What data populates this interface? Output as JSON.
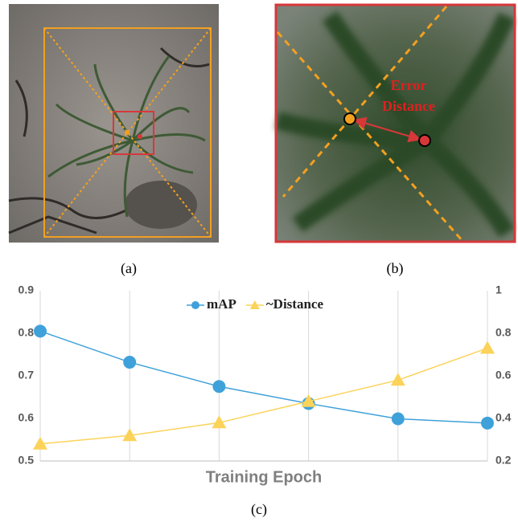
{
  "chart_data": {
    "type": "line",
    "categories": [
      null,
      null,
      null,
      null,
      null,
      null
    ],
    "x_label": "Training Epoch",
    "series": [
      {
        "name": "mAP",
        "color": "#3fa1da",
        "marker": "circle",
        "values": [
          0.805,
          0.732,
          0.675,
          0.635,
          0.599,
          0.589
        ]
      },
      {
        "name": "~Distance",
        "color": "#fcd35a",
        "marker": "triangle",
        "axis": "y2",
        "values": [
          0.28,
          0.32,
          0.38,
          0.48,
          0.58,
          0.73
        ]
      }
    ],
    "ylim": [
      0.5,
      0.9
    ],
    "yticks": [
      0.5,
      0.6,
      0.7,
      0.8,
      0.9
    ],
    "y2lim": [
      0.2,
      1
    ],
    "y2ticks": [
      0.2,
      0.4,
      0.6,
      0.8,
      1
    ],
    "grid": true,
    "legend": "top"
  },
  "figure": {
    "panel_labels": [
      "(a)",
      "(b)",
      "(c)"
    ],
    "annotation": [
      "Error",
      "Distance"
    ]
  }
}
